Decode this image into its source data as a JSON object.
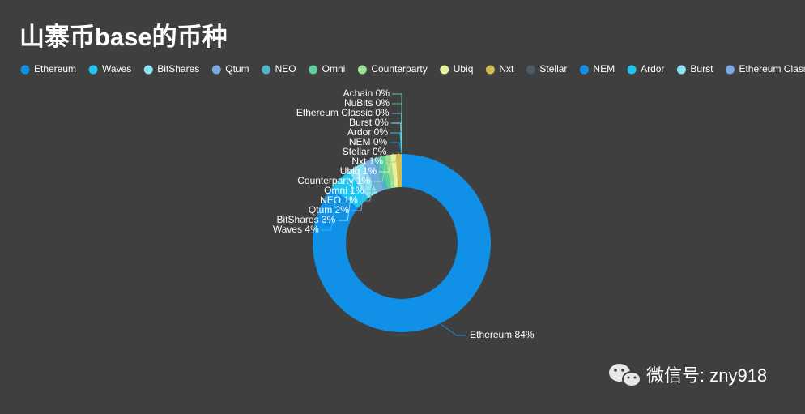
{
  "chart_data": {
    "type": "donut",
    "title": "山寨币base的币种",
    "categories": [
      "Ethereum",
      "Waves",
      "BitShares",
      "Qtum",
      "NEO",
      "Omni",
      "Counterparty",
      "Ubiq",
      "Nxt",
      "Stellar",
      "NEM",
      "Ardor",
      "Burst",
      "Ethereum Classic",
      "NuBits",
      "Achain"
    ],
    "values": [
      84,
      4,
      3,
      2,
      1,
      1,
      1,
      1,
      1,
      0,
      0,
      0,
      0,
      0,
      0,
      0
    ],
    "value_labels": [
      "Ethereum 84%",
      "Waves 4%",
      "BitShares 3%",
      "Qtum 2%",
      "NEO 1%",
      "Omni 1%",
      "Counterparty 1%",
      "Ubiq 1%",
      "Nxt 1%",
      "Stellar 0%",
      "NEM 0%",
      "Ardor 0%",
      "Burst 0%",
      "Ethereum Classic 0%",
      "NuBits 0%",
      "Achain 0%"
    ],
    "colors": [
      "#1090e6",
      "#1cc6f3",
      "#8de3f5",
      "#77abe6",
      "#4db5c6",
      "#5bcf9c",
      "#98e196",
      "#e6f39e",
      "#d2bd52",
      "#4b5968",
      "#1090e6",
      "#1cc6f3",
      "#8de3f5",
      "#77abe6",
      "#4db5c6",
      "#5bcf9c"
    ],
    "legend": "top",
    "watermark": "微信号: zny918"
  }
}
